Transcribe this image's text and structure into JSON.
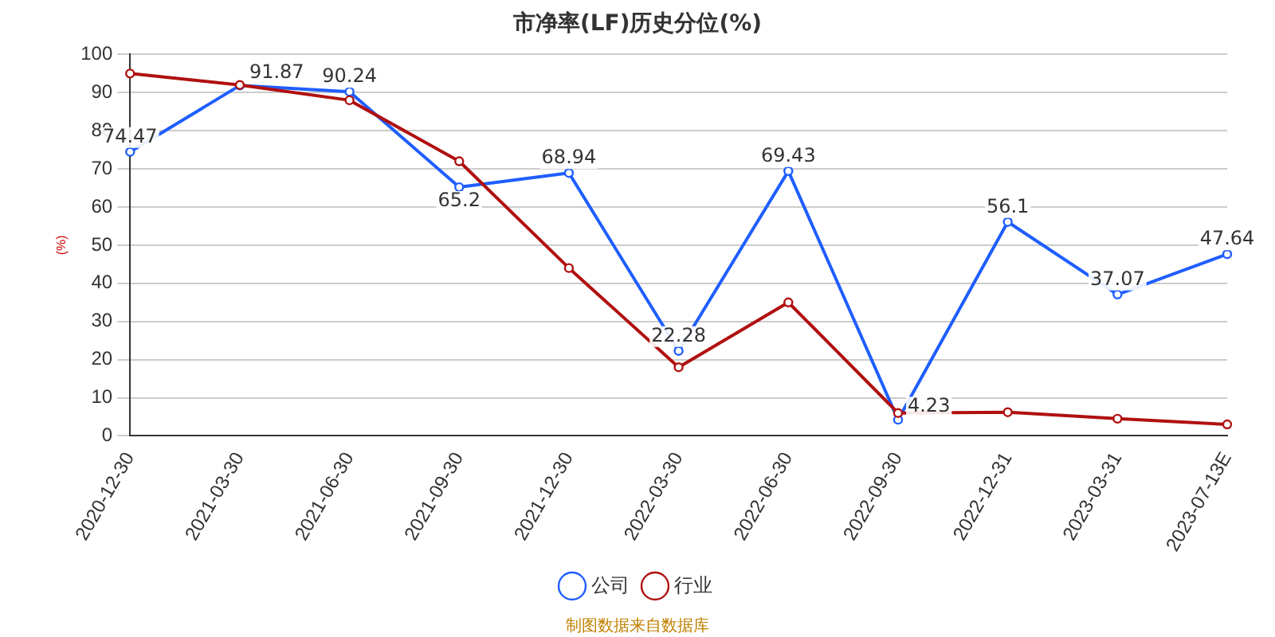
{
  "chart_data": {
    "type": "line",
    "title": "市净率(LF)历史分位(%)",
    "ylabel": "(%)",
    "categories": [
      "2020-12-30",
      "2021-03-30",
      "2021-06-30",
      "2021-09-30",
      "2021-12-30",
      "2022-03-30",
      "2022-06-30",
      "2022-09-30",
      "2022-12-31",
      "2023-03-31",
      "2023-07-13E"
    ],
    "series": [
      {
        "name": "公司",
        "color": "#1f5eff",
        "values": [
          74.47,
          91.87,
          90.24,
          65.2,
          68.94,
          22.28,
          69.43,
          4.23,
          56.1,
          37.07,
          47.64
        ],
        "value_labels": [
          "74.47",
          "91.87",
          "90.24",
          "65.2",
          "68.94",
          "22.28",
          "69.43",
          "4.23",
          "56.1",
          "37.07",
          "47.64"
        ]
      },
      {
        "name": "行业",
        "color": "#b01010",
        "values": [
          95,
          92,
          88,
          72,
          44,
          18,
          35,
          6,
          6.2,
          4.5,
          3
        ]
      }
    ],
    "ylim": [
      0,
      100
    ],
    "yticks": [
      0,
      10,
      20,
      30,
      40,
      50,
      60,
      70,
      80,
      90,
      100
    ],
    "grid": "y",
    "legend": "bottom",
    "marker": "circle",
    "line_style": "solid",
    "annotations": [
      "制图数据来自数据库"
    ]
  }
}
